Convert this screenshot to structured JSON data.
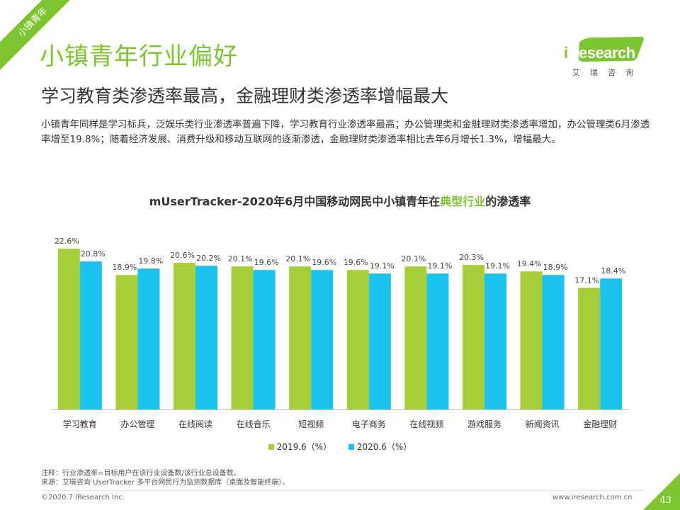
{
  "ribbon": {
    "label": "小镇青年"
  },
  "header": {
    "title": "小镇青年行业偏好",
    "subtitle": "学习教育类渗透率最高，金融理财类渗透率增幅最大"
  },
  "logo": {
    "text_i": "i",
    "text_rest": "Research",
    "cn": "艾瑞咨询"
  },
  "description": "小镇青年同样是学习标兵，泛娱乐类行业渗透率普遍下降，学习教育行业渗透率最高；办公管理类和金融理财类渗透率增加，办公管理类6月渗透率增至19.8%；随着经济发展、消费升级和移动互联网的逐渐渗透，金融理财类渗透率相比去年6月增长1.3%，增幅最大。",
  "chart_title": {
    "before": "mUserTracker-2020年6月中国移动网民中小镇青年在",
    "highlight": "典型行业",
    "after": "的渗透率"
  },
  "chart_data": {
    "type": "bar",
    "title": "mUserTracker-2020年6月中国移动网民中小镇青年在典型行业的渗透率",
    "categories": [
      "学习教育",
      "办公管理",
      "在线阅读",
      "在线音乐",
      "短视频",
      "电子商务",
      "在线视频",
      "游戏服务",
      "新闻资讯",
      "金融理财"
    ],
    "series": [
      {
        "name": "2019.6（%）",
        "color": "#a6ce39",
        "values": [
          22.6,
          18.9,
          20.6,
          20.1,
          20.1,
          19.6,
          20.1,
          20.3,
          19.4,
          17.1
        ]
      },
      {
        "name": "2020.6（%）",
        "color": "#1cc2ee",
        "values": [
          20.8,
          19.8,
          20.2,
          19.6,
          19.6,
          19.1,
          19.1,
          19.1,
          18.9,
          18.4
        ]
      }
    ],
    "value_suffix": "%",
    "ylim": [
      0,
      24.5
    ],
    "grid": false,
    "legend_position": "bottom"
  },
  "notes": {
    "line1": "注释：行业渗透率=目标用户在该行业设备数/该行业总设备数。",
    "line2": "来源：艾瑞咨询 UserTracker 多平台网民行为监测数据库（桌面及智能终端）。"
  },
  "footer": {
    "copyright": "©2020.7 iResearch Inc.",
    "website": "www.iresearch.com.cn",
    "page_number": "43"
  }
}
